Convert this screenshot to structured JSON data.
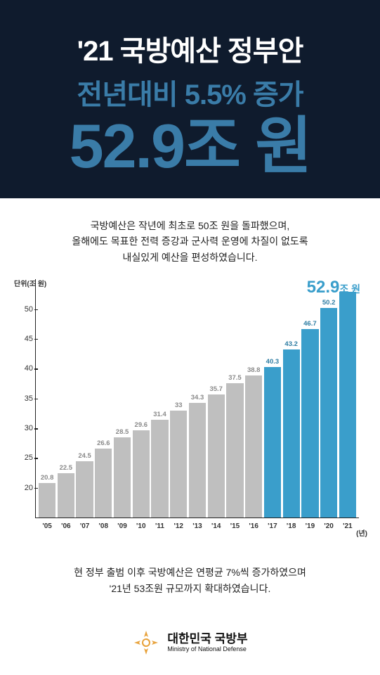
{
  "hero": {
    "bg_color": "#0f1b2d",
    "line1": {
      "text": "'21 국방예산 정부안",
      "color": "#ffffff",
      "fontsize": 40
    },
    "line2": {
      "text": "전년대비 5.5% 증가",
      "color": "#3a7ca8",
      "fontsize": 40
    },
    "line3": {
      "text": "52.9조 원",
      "color": "#3a7ca8",
      "fontsize": 88
    }
  },
  "description": {
    "line1": "국방예산은 작년에 최초로 50조 원을 돌파했으며,",
    "line2": "올해에도 목표한 전력 증강과 군사력 운영에 차질이 없도록",
    "line3": "내실있게 예산을 편성하였습니다.",
    "fontsize": 14,
    "color": "#222222"
  },
  "chart": {
    "type": "bar",
    "y_axis_label": "단위(조 원)",
    "x_axis_label": "(년)",
    "ymin": 15,
    "ymax": 55,
    "yticks": [
      20,
      25,
      30,
      35,
      40,
      45,
      50
    ],
    "categories": [
      "'05",
      "'06",
      "'07",
      "'08",
      "'09",
      "'10",
      "'11",
      "'12",
      "'13",
      "'14",
      "'15",
      "'16",
      "'17",
      "'18",
      "'19",
      "'20",
      "'21"
    ],
    "values": [
      20.8,
      22.5,
      24.5,
      26.6,
      28.5,
      29.6,
      31.4,
      33.0,
      34.3,
      35.7,
      37.5,
      38.8,
      40.3,
      43.2,
      46.7,
      50.2,
      52.9
    ],
    "bar_colors": [
      "#bfbfbf",
      "#bfbfbf",
      "#bfbfbf",
      "#bfbfbf",
      "#bfbfbf",
      "#bfbfbf",
      "#bfbfbf",
      "#bfbfbf",
      "#bfbfbf",
      "#bfbfbf",
      "#bfbfbf",
      "#bfbfbf",
      "#3a9ecb",
      "#3a9ecb",
      "#3a9ecb",
      "#3a9ecb",
      "#3a9ecb"
    ],
    "value_label_colors": [
      "#8a8a8a",
      "#8a8a8a",
      "#8a8a8a",
      "#8a8a8a",
      "#8a8a8a",
      "#8a8a8a",
      "#8a8a8a",
      "#8a8a8a",
      "#8a8a8a",
      "#8a8a8a",
      "#8a8a8a",
      "#8a8a8a",
      "#2e7da3",
      "#2e7da3",
      "#2e7da3",
      "#2e7da3",
      "#2e7da3"
    ],
    "show_last_value_label": false,
    "callout": {
      "value": "52.9",
      "unit": "조 원",
      "color": "#3a9ecb"
    },
    "axis_color": "#222222",
    "value_fontsize": 9.5,
    "tick_fontsize": 11,
    "xlabel_fontsize": 10
  },
  "footnote": {
    "line1": "현 정부 출범 이후 국방예산은 연평균 7%씩 증가하였으며",
    "line2": "'21년 53조원 규모까지 확대하였습니다.",
    "fontsize": 14,
    "color": "#222222"
  },
  "footer": {
    "ko": "대한민국 국방부",
    "en": "Ministry of National Defense",
    "text_color": "#111111",
    "emblem_color": "#e8a33d"
  }
}
